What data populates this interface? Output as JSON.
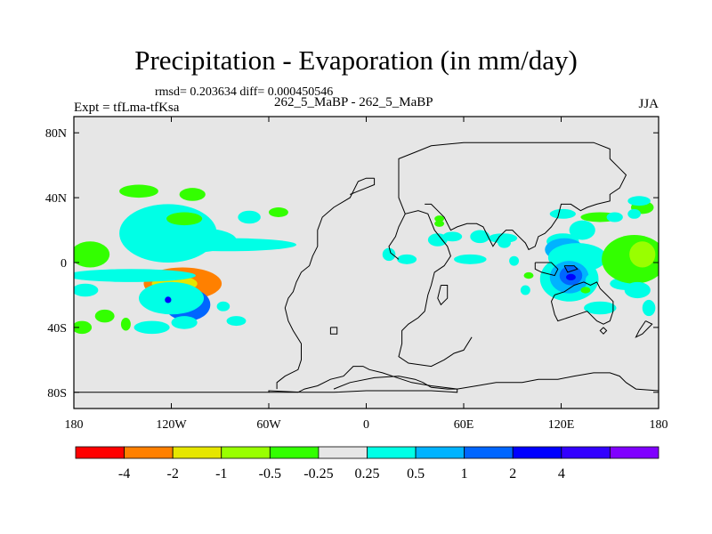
{
  "chart_data": {
    "type": "contour-map",
    "title": "Precipitation - Evaporation (in mm/day)",
    "stats_line": "rmsd= 0.203634 diff= 0.000450546",
    "case_line": "262_5_MaBP - 262_5_MaBP",
    "left_label": "Expt = tfLma-tfKsa",
    "right_label": "JJA",
    "xlim": [
      -180,
      180
    ],
    "ylim": [
      -90,
      90
    ],
    "x_ticks": [
      {
        "lon": -180,
        "label": "180"
      },
      {
        "lon": -120,
        "label": "120W"
      },
      {
        "lon": -60,
        "label": "60W"
      },
      {
        "lon": 0,
        "label": "0"
      },
      {
        "lon": 60,
        "label": "60E"
      },
      {
        "lon": 120,
        "label": "120E"
      },
      {
        "lon": 180,
        "label": "180"
      }
    ],
    "y_ticks": [
      {
        "lat": 80,
        "label": "80N"
      },
      {
        "lat": 40,
        "label": "40N"
      },
      {
        "lat": 0,
        "label": "0"
      },
      {
        "lat": -40,
        "label": "40S"
      },
      {
        "lat": -80,
        "label": "80S"
      }
    ],
    "background_color": "#e6e6e6",
    "colorbar": {
      "colors": [
        "#ff0000",
        "#ff8000",
        "#e6e600",
        "#99ff00",
        "#33ff00",
        "#e6e6e6",
        "#00ffe6",
        "#00b3ff",
        "#0066ff",
        "#0000ff",
        "#3300ff",
        "#8000ff"
      ],
      "labels": [
        "-4",
        "-2",
        "-1",
        "-0.5",
        "-0.25",
        "0.25",
        "0.5",
        "1",
        "2",
        "4"
      ]
    },
    "anomalies": [
      {
        "lon": -122,
        "lat": 18,
        "level": 1,
        "rlon": 17,
        "rlat": 10
      },
      {
        "lon": -122,
        "lat": 18,
        "level": 0,
        "rlon": 30,
        "rlat": 18
      },
      {
        "lon": -110,
        "lat": 14,
        "level": 0,
        "rlon": 30,
        "rlat": 8
      },
      {
        "lon": -85,
        "lat": 11,
        "level": 0,
        "rlon": 42,
        "rlat": 4
      },
      {
        "lon": -113,
        "lat": -13,
        "level": -4,
        "rlon": 24,
        "rlat": 10
      },
      {
        "lon": -118,
        "lat": -13,
        "level": -3,
        "rlon": 14,
        "rlat": 5
      },
      {
        "lon": -110,
        "lat": -26,
        "level": 2,
        "rlon": 14,
        "rlat": 10
      },
      {
        "lon": -120,
        "lat": -22,
        "level": 0,
        "rlon": 20,
        "rlat": 10
      },
      {
        "lon": -122,
        "lat": -23,
        "level": 3,
        "rlon": 2,
        "rlat": 2
      },
      {
        "lon": -170,
        "lat": 5,
        "level": -1,
        "rlon": 12,
        "rlat": 8
      },
      {
        "lon": -173,
        "lat": -17,
        "level": 0,
        "rlon": 8,
        "rlat": 4
      },
      {
        "lon": -145,
        "lat": -8,
        "level": 0,
        "rlon": 40,
        "rlat": 4
      },
      {
        "lon": -112,
        "lat": 27,
        "level": -1,
        "rlon": 11,
        "rlat": 4
      },
      {
        "lon": -140,
        "lat": 44,
        "level": -1,
        "rlon": 12,
        "rlat": 4
      },
      {
        "lon": -107,
        "lat": 42,
        "level": -1,
        "rlon": 8,
        "rlat": 4
      },
      {
        "lon": -72,
        "lat": 28,
        "level": 0,
        "rlon": 7,
        "rlat": 4
      },
      {
        "lon": -54,
        "lat": 31,
        "level": -1,
        "rlon": 6,
        "rlat": 3
      },
      {
        "lon": -161,
        "lat": -33,
        "level": -1,
        "rlon": 6,
        "rlat": 4
      },
      {
        "lon": -148,
        "lat": -38,
        "level": -1,
        "rlon": 3,
        "rlat": 4
      },
      {
        "lon": -175,
        "lat": -40,
        "level": -1,
        "rlon": 6,
        "rlat": 4
      },
      {
        "lon": -132,
        "lat": -40,
        "level": 0,
        "rlon": 11,
        "rlat": 4
      },
      {
        "lon": -112,
        "lat": -37,
        "level": 0,
        "rlon": 8,
        "rlat": 4
      },
      {
        "lon": -80,
        "lat": -36,
        "level": 0,
        "rlon": 6,
        "rlat": 3
      },
      {
        "lon": -88,
        "lat": -27,
        "level": 0,
        "rlon": 4,
        "rlat": 3
      },
      {
        "lon": 44,
        "lat": 14,
        "level": 0,
        "rlon": 6,
        "rlat": 4
      },
      {
        "lon": 53,
        "lat": 16,
        "level": 0,
        "rlon": 6,
        "rlat": 3
      },
      {
        "lon": 70,
        "lat": 16,
        "level": 0,
        "rlon": 6,
        "rlat": 4
      },
      {
        "lon": 84,
        "lat": 15,
        "level": 0,
        "rlon": 9,
        "rlat": 3
      },
      {
        "lon": 85,
        "lat": 12,
        "level": 0,
        "rlon": 4,
        "rlat": 3
      },
      {
        "lon": 25,
        "lat": 2,
        "level": 0,
        "rlon": 6,
        "rlat": 3
      },
      {
        "lon": 14,
        "lat": 5,
        "level": 0,
        "rlon": 4,
        "rlat": 4
      },
      {
        "lon": 64,
        "lat": 2,
        "level": 0,
        "rlon": 10,
        "rlat": 3
      },
      {
        "lon": 91,
        "lat": 1,
        "level": 0,
        "rlon": 3,
        "rlat": 3
      },
      {
        "lon": 98,
        "lat": -17,
        "level": 0,
        "rlon": 3,
        "rlat": 3
      },
      {
        "lon": 121,
        "lat": 13,
        "level": 0,
        "rlon": 10,
        "rlat": 5
      },
      {
        "lon": 122,
        "lat": 8,
        "level": 1,
        "rlon": 12,
        "rlat": 7
      },
      {
        "lon": 133,
        "lat": 20,
        "level": 0,
        "rlon": 8,
        "rlat": 6
      },
      {
        "lon": 130,
        "lat": 3,
        "level": 0,
        "rlon": 18,
        "rlat": 9
      },
      {
        "lon": 125,
        "lat": -10,
        "level": 0,
        "rlon": 18,
        "rlat": 14
      },
      {
        "lon": 125,
        "lat": -9,
        "level": 1,
        "rlon": 12,
        "rlat": 10
      },
      {
        "lon": 126,
        "lat": -8,
        "level": 2,
        "rlon": 7,
        "rlat": 6
      },
      {
        "lon": 126,
        "lat": -9,
        "level": 3,
        "rlon": 3,
        "rlat": 2
      },
      {
        "lon": 139,
        "lat": -11,
        "level": 0,
        "rlon": 4,
        "rlat": 4
      },
      {
        "lon": 160,
        "lat": -13,
        "level": 0,
        "rlon": 10,
        "rlat": 4
      },
      {
        "lon": 165,
        "lat": 2,
        "level": -1,
        "rlon": 20,
        "rlat": 15
      },
      {
        "lon": 170,
        "lat": 5,
        "level": -2,
        "rlon": 8,
        "rlat": 8
      },
      {
        "lon": 167,
        "lat": -17,
        "level": 0,
        "rlon": 8,
        "rlat": 5
      },
      {
        "lon": 144,
        "lat": -28,
        "level": 0,
        "rlon": 10,
        "rlat": 4
      },
      {
        "lon": 174,
        "lat": -28,
        "level": 0,
        "rlon": 4,
        "rlat": 5
      },
      {
        "lon": 144,
        "lat": 28,
        "level": -1,
        "rlon": 12,
        "rlat": 3
      },
      {
        "lon": 170,
        "lat": 34,
        "level": -1,
        "rlon": 7,
        "rlat": 4
      },
      {
        "lon": 168,
        "lat": 38,
        "level": 0,
        "rlon": 7,
        "rlat": 3
      },
      {
        "lon": 121,
        "lat": 30,
        "level": 0,
        "rlon": 8,
        "rlat": 3
      },
      {
        "lon": 153,
        "lat": 28,
        "level": 0,
        "rlon": 5,
        "rlat": 3
      },
      {
        "lon": 165,
        "lat": 30,
        "level": 0,
        "rlon": 4,
        "rlat": 3
      },
      {
        "lon": 135,
        "lat": -17,
        "level": -1,
        "rlon": 3,
        "rlat": 2
      },
      {
        "lon": 100,
        "lat": -8,
        "level": -1,
        "rlon": 3,
        "rlat": 2
      },
      {
        "lon": 45,
        "lat": 27,
        "level": -1,
        "rlon": 3,
        "rlat": 2
      },
      {
        "lon": 45,
        "lat": 24,
        "level": -1,
        "rlon": 3,
        "rlat": 2
      }
    ],
    "coastline": [
      [
        [
          -20,
          -78
        ],
        [
          -10,
          -74
        ],
        [
          5,
          -71
        ],
        [
          20,
          -70
        ],
        [
          30,
          -72
        ],
        [
          35,
          -74
        ],
        [
          40,
          -77
        ],
        [
          50,
          -78
        ],
        [
          56,
          -78
        ],
        [
          56,
          -80
        ],
        [
          40,
          -79
        ],
        [
          20,
          -79
        ],
        [
          0,
          -79
        ],
        [
          -20,
          -80
        ],
        [
          -40,
          -80
        ],
        [
          -60,
          -79
        ],
        [
          -60,
          -80
        ],
        [
          -180,
          -80
        ]
      ],
      [
        [
          -60,
          -80
        ],
        [
          -42,
          -80
        ],
        [
          -38,
          -78
        ],
        [
          -30,
          -76
        ],
        [
          -22,
          -72
        ],
        [
          -14,
          -70
        ],
        [
          -8,
          -64
        ],
        [
          -2,
          -64
        ],
        [
          2,
          -66
        ],
        [
          10,
          -68
        ],
        [
          22,
          -72
        ],
        [
          28,
          -74
        ],
        [
          40,
          -76
        ],
        [
          56,
          -78
        ],
        [
          68,
          -76
        ],
        [
          80,
          -74
        ],
        [
          96,
          -74
        ],
        [
          106,
          -72
        ],
        [
          118,
          -72
        ],
        [
          128,
          -70
        ],
        [
          140,
          -68
        ],
        [
          150,
          -68
        ],
        [
          156,
          -70
        ],
        [
          160,
          -74
        ],
        [
          166,
          -78
        ],
        [
          180,
          -79
        ]
      ],
      [
        [
          -55,
          -78
        ],
        [
          -55,
          -74
        ],
        [
          -50,
          -70
        ],
        [
          -42,
          -66
        ],
        [
          -40,
          -60
        ],
        [
          -40,
          -50
        ],
        [
          -45,
          -42
        ],
        [
          -48,
          -36
        ],
        [
          -50,
          -28
        ],
        [
          -48,
          -22
        ],
        [
          -45,
          -18
        ],
        [
          -43,
          -12
        ],
        [
          -40,
          -6
        ],
        [
          -35,
          -2
        ],
        [
          -33,
          4
        ],
        [
          -30,
          10
        ],
        [
          -30,
          20
        ],
        [
          -27,
          28
        ],
        [
          -20,
          34
        ],
        [
          -10,
          40
        ],
        [
          -5,
          50
        ],
        [
          0,
          52
        ],
        [
          5,
          52
        ]
      ],
      [
        [
          5,
          52
        ],
        [
          5,
          48
        ],
        [
          0,
          46
        ],
        [
          -5,
          44
        ],
        [
          -10,
          42
        ]
      ],
      [
        [
          -22,
          -40
        ],
        [
          -18,
          -40
        ],
        [
          -18,
          -44
        ],
        [
          -22,
          -44
        ],
        [
          -22,
          -40
        ]
      ],
      [
        [
          20,
          2
        ],
        [
          15,
          6
        ],
        [
          14,
          10
        ],
        [
          18,
          16
        ],
        [
          20,
          22
        ],
        [
          24,
          30
        ],
        [
          32,
          32
        ],
        [
          38,
          30
        ],
        [
          42,
          20
        ],
        [
          50,
          10
        ],
        [
          52,
          4
        ],
        [
          48,
          -2
        ],
        [
          42,
          -6
        ],
        [
          40,
          -14
        ],
        [
          38,
          -20
        ],
        [
          36,
          -30
        ],
        [
          32,
          -34
        ],
        [
          26,
          -38
        ],
        [
          22,
          -42
        ],
        [
          22,
          -50
        ],
        [
          20,
          -58
        ],
        [
          26,
          -62
        ],
        [
          40,
          -64
        ],
        [
          48,
          -60
        ],
        [
          54,
          -56
        ],
        [
          60,
          -54
        ],
        [
          65,
          -46
        ]
      ],
      [
        [
          24,
          30
        ],
        [
          20,
          40
        ],
        [
          20,
          52
        ],
        [
          20,
          64
        ],
        [
          30,
          68
        ],
        [
          40,
          72
        ],
        [
          60,
          74
        ],
        [
          80,
          74
        ],
        [
          100,
          74
        ],
        [
          120,
          74
        ],
        [
          140,
          74
        ],
        [
          150,
          70
        ],
        [
          150,
          64
        ],
        [
          156,
          58
        ],
        [
          160,
          54
        ],
        [
          156,
          46
        ],
        [
          150,
          42
        ],
        [
          150,
          38
        ],
        [
          142,
          36
        ],
        [
          136,
          34
        ],
        [
          132,
          32
        ],
        [
          126,
          36
        ],
        [
          120,
          36
        ],
        [
          118,
          28
        ],
        [
          114,
          22
        ],
        [
          110,
          18
        ],
        [
          106,
          16
        ],
        [
          104,
          10
        ],
        [
          100,
          8
        ],
        [
          98,
          12
        ],
        [
          94,
          16
        ],
        [
          90,
          20
        ],
        [
          86,
          20
        ],
        [
          82,
          16
        ],
        [
          78,
          10
        ],
        [
          76,
          14
        ],
        [
          72,
          22
        ],
        [
          68,
          24
        ],
        [
          62,
          24
        ],
        [
          56,
          22
        ],
        [
          52,
          20
        ],
        [
          48,
          28
        ],
        [
          46,
          30
        ],
        [
          44,
          32
        ],
        [
          40,
          36
        ],
        [
          36,
          36
        ]
      ],
      [
        [
          104,
          0
        ],
        [
          114,
          0
        ],
        [
          118,
          -4
        ],
        [
          116,
          -8
        ],
        [
          108,
          -6
        ],
        [
          104,
          -4
        ],
        [
          104,
          0
        ]
      ],
      [
        [
          122,
          -2
        ],
        [
          128,
          -2
        ],
        [
          130,
          -4
        ],
        [
          124,
          -6
        ],
        [
          122,
          -2
        ]
      ],
      [
        [
          116,
          -20
        ],
        [
          114,
          -24
        ],
        [
          116,
          -32
        ],
        [
          118,
          -36
        ],
        [
          124,
          -34
        ],
        [
          130,
          -32
        ],
        [
          136,
          -30
        ],
        [
          142,
          -36
        ],
        [
          146,
          -38
        ],
        [
          150,
          -36
        ],
        [
          152,
          -30
        ],
        [
          152,
          -24
        ],
        [
          148,
          -20
        ],
        [
          144,
          -16
        ],
        [
          142,
          -12
        ],
        [
          138,
          -14
        ],
        [
          134,
          -12
        ],
        [
          128,
          -14
        ],
        [
          122,
          -18
        ],
        [
          116,
          -20
        ]
      ],
      [
        [
          146,
          -40
        ],
        [
          148,
          -42
        ],
        [
          146,
          -44
        ],
        [
          144,
          -42
        ],
        [
          146,
          -40
        ]
      ],
      [
        [
          172,
          -36
        ],
        [
          176,
          -38
        ],
        [
          174,
          -40
        ],
        [
          170,
          -44
        ],
        [
          166,
          -46
        ],
        [
          168,
          -42
        ],
        [
          172,
          -36
        ]
      ],
      [
        [
          46,
          -14
        ],
        [
          50,
          -14
        ],
        [
          50,
          -22
        ],
        [
          46,
          -26
        ],
        [
          44,
          -22
        ],
        [
          46,
          -14
        ]
      ]
    ]
  }
}
